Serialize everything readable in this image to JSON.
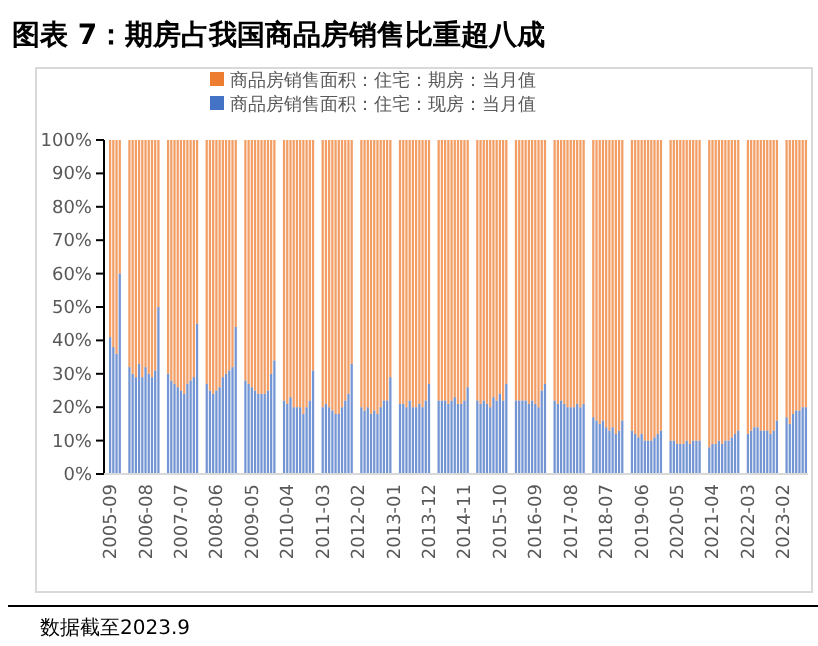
{
  "chart_data": {
    "type": "bar",
    "stacked": true,
    "title": "图表 7：期房占我国商品房销售比重超八成",
    "categories": [
      "2005-09",
      null,
      null,
      null,
      null,
      null,
      null,
      null,
      null,
      null,
      null,
      "2006-08",
      null,
      null,
      null,
      null,
      null,
      null,
      null,
      null,
      null,
      null,
      "2007-07",
      null,
      null,
      null,
      null,
      null,
      null,
      null,
      null,
      null,
      null,
      "2008-06",
      null,
      null,
      null,
      null,
      null,
      null,
      null,
      null,
      null,
      null,
      "2009-05",
      null,
      null,
      null,
      null,
      null,
      null,
      null,
      null,
      null,
      null,
      "2010-04",
      null,
      null,
      null,
      null,
      null,
      null,
      null,
      null,
      null,
      null,
      "2011-03",
      null,
      null,
      null,
      null,
      null,
      null,
      null,
      null,
      null,
      null,
      "2012-02",
      null,
      null,
      null,
      null,
      null,
      null,
      null,
      null,
      null,
      null,
      "2013-01",
      null,
      null,
      null,
      null,
      null,
      null,
      null,
      null,
      null,
      null,
      "2013-12",
      null,
      null,
      null,
      null,
      null,
      null,
      null,
      null,
      null,
      null,
      "2014-11",
      null,
      null,
      null,
      null,
      null,
      null,
      null,
      null,
      null,
      null,
      "2015-10",
      null,
      null,
      null,
      null,
      null,
      null,
      null,
      null,
      null,
      null,
      "2016-09",
      null,
      null,
      null,
      null,
      null,
      null,
      null,
      null,
      null,
      null,
      "2017-08",
      null,
      null,
      null,
      null,
      null,
      null,
      null,
      null,
      null,
      null,
      "2018-07",
      null,
      null,
      null,
      null,
      null,
      null,
      null,
      null,
      null,
      null,
      "2019-06",
      null,
      null,
      null,
      null,
      null,
      null,
      null,
      null,
      null,
      null,
      "2020-05",
      null,
      null,
      null,
      null,
      null,
      null,
      null,
      null,
      null,
      null,
      "2021-04",
      null,
      null,
      null,
      null,
      null,
      null,
      null,
      null,
      null,
      null,
      "2022-03",
      null,
      null,
      null,
      null,
      null,
      null,
      null,
      null,
      null,
      null,
      "2023-02",
      null,
      null,
      null,
      null,
      null,
      null,
      null
    ],
    "series": [
      {
        "name": "商品房销售面积：住宅：现房：当月值",
        "color": "#4472c4",
        "values": [
          41,
          38,
          36,
          60,
          null,
          null,
          32,
          30,
          29,
          33,
          29,
          32,
          30,
          29,
          31,
          50,
          null,
          null,
          30,
          28,
          27,
          26,
          25,
          24,
          27,
          28,
          29,
          45,
          null,
          null,
          27,
          25,
          24,
          25,
          26,
          29,
          30,
          31,
          32,
          44,
          null,
          null,
          28,
          27,
          26,
          25,
          24,
          24,
          24,
          25,
          30,
          34,
          null,
          null,
          22,
          21,
          23,
          20,
          20,
          20,
          18,
          20,
          22,
          31,
          null,
          null,
          20,
          21,
          20,
          19,
          18,
          18,
          20,
          22,
          24,
          33,
          null,
          null,
          20,
          19,
          20,
          18,
          19,
          18,
          20,
          22,
          22,
          29,
          null,
          null,
          21,
          21,
          20,
          22,
          20,
          20,
          21,
          20,
          22,
          27,
          null,
          null,
          22,
          22,
          22,
          21,
          22,
          23,
          21,
          21,
          22,
          26,
          null,
          null,
          22,
          21,
          22,
          21,
          20,
          23,
          22,
          24,
          22,
          27,
          null,
          null,
          22,
          22,
          22,
          22,
          21,
          22,
          21,
          20,
          25,
          27,
          null,
          null,
          22,
          21,
          22,
          21,
          20,
          20,
          20,
          21,
          20,
          21,
          null,
          null,
          17,
          16,
          15,
          16,
          14,
          13,
          14,
          12,
          13,
          16,
          null,
          null,
          13,
          12,
          11,
          12,
          10,
          10,
          10,
          11,
          12,
          13,
          null,
          null,
          10,
          10,
          9,
          9,
          9,
          10,
          9,
          10,
          10,
          10,
          null,
          null,
          8,
          9,
          9,
          10,
          9,
          10,
          10,
          11,
          12,
          13,
          null,
          null,
          12,
          13,
          14,
          14,
          13,
          13,
          13,
          12,
          13,
          16,
          null,
          null,
          17,
          15,
          18,
          19,
          19,
          20,
          20
        ]
      },
      {
        "name": "商品房销售面积：住宅：期房：当月值",
        "color": "#ed7d31",
        "values": [
          59,
          62,
          64,
          40,
          null,
          null,
          68,
          70,
          71,
          67,
          71,
          68,
          70,
          71,
          69,
          50,
          null,
          null,
          70,
          72,
          73,
          74,
          75,
          76,
          73,
          72,
          71,
          55,
          null,
          null,
          73,
          75,
          76,
          75,
          74,
          71,
          70,
          69,
          68,
          56,
          null,
          null,
          72,
          73,
          74,
          75,
          76,
          76,
          76,
          75,
          70,
          66,
          null,
          null,
          78,
          79,
          77,
          80,
          80,
          80,
          82,
          80,
          78,
          69,
          null,
          null,
          80,
          79,
          80,
          81,
          82,
          82,
          80,
          78,
          76,
          67,
          null,
          null,
          80,
          81,
          80,
          82,
          81,
          82,
          80,
          78,
          78,
          71,
          null,
          null,
          79,
          79,
          80,
          78,
          80,
          80,
          79,
          80,
          78,
          73,
          null,
          null,
          78,
          78,
          78,
          79,
          78,
          77,
          79,
          79,
          78,
          74,
          null,
          null,
          78,
          79,
          78,
          79,
          80,
          77,
          78,
          76,
          78,
          73,
          null,
          null,
          78,
          78,
          78,
          78,
          79,
          78,
          79,
          80,
          75,
          73,
          null,
          null,
          78,
          79,
          78,
          79,
          80,
          80,
          80,
          79,
          80,
          79,
          null,
          null,
          83,
          84,
          85,
          84,
          86,
          87,
          86,
          88,
          87,
          84,
          null,
          null,
          87,
          88,
          89,
          88,
          90,
          90,
          90,
          89,
          88,
          87,
          null,
          null,
          90,
          90,
          91,
          91,
          91,
          90,
          91,
          90,
          90,
          90,
          null,
          null,
          92,
          91,
          91,
          90,
          91,
          90,
          90,
          89,
          88,
          87,
          null,
          null,
          88,
          87,
          86,
          86,
          87,
          87,
          87,
          88,
          87,
          84,
          null,
          null,
          83,
          85,
          82,
          81,
          81,
          80,
          80
        ]
      }
    ],
    "ylim": [
      0,
      100
    ],
    "yticks": [
      {
        "value": 0,
        "label": "0%"
      },
      {
        "value": 10,
        "label": "10%"
      },
      {
        "value": 20,
        "label": "20%"
      },
      {
        "value": 30,
        "label": "30%"
      },
      {
        "value": 40,
        "label": "40%"
      },
      {
        "value": 50,
        "label": "50%"
      },
      {
        "value": 60,
        "label": "60%"
      },
      {
        "value": 70,
        "label": "70%"
      },
      {
        "value": 80,
        "label": "80%"
      },
      {
        "value": 90,
        "label": "90%"
      },
      {
        "value": 100,
        "label": "100%"
      }
    ],
    "legend": "top",
    "annotations": [
      "数据截至2023.9"
    ]
  }
}
